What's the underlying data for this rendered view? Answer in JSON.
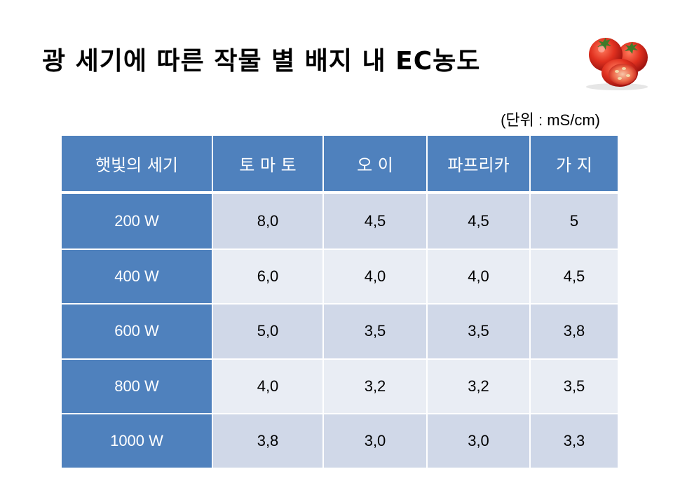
{
  "slide": {
    "title": "광 세기에 따른 작물 별 배지 내 EC농도",
    "unit": "(단위 : mS/cm)"
  },
  "table": {
    "headers": [
      "햇빛의 세기",
      "토 마 토",
      "오  이",
      "파프리카",
      "가 지"
    ],
    "rows": [
      [
        "200 W",
        "8,0",
        "4,5",
        "4,5",
        "5"
      ],
      [
        "400 W",
        "6,0",
        "4,0",
        "4,0",
        "4,5"
      ],
      [
        "600 W",
        "5,0",
        "3,5",
        "3,5",
        "3,8"
      ],
      [
        "800 W",
        "4,0",
        "3,2",
        "3,2",
        "3,5"
      ],
      [
        "1000 W",
        "3,8",
        "3,0",
        "3,0",
        "3,3"
      ]
    ]
  },
  "colors": {
    "header_blue": "#4f81bd",
    "row_band_dark": "#d0d8e8",
    "row_band_light": "#e9edf4",
    "tomato_red": "#d7261e"
  },
  "icons": {
    "decoration": "tomato-icon"
  }
}
